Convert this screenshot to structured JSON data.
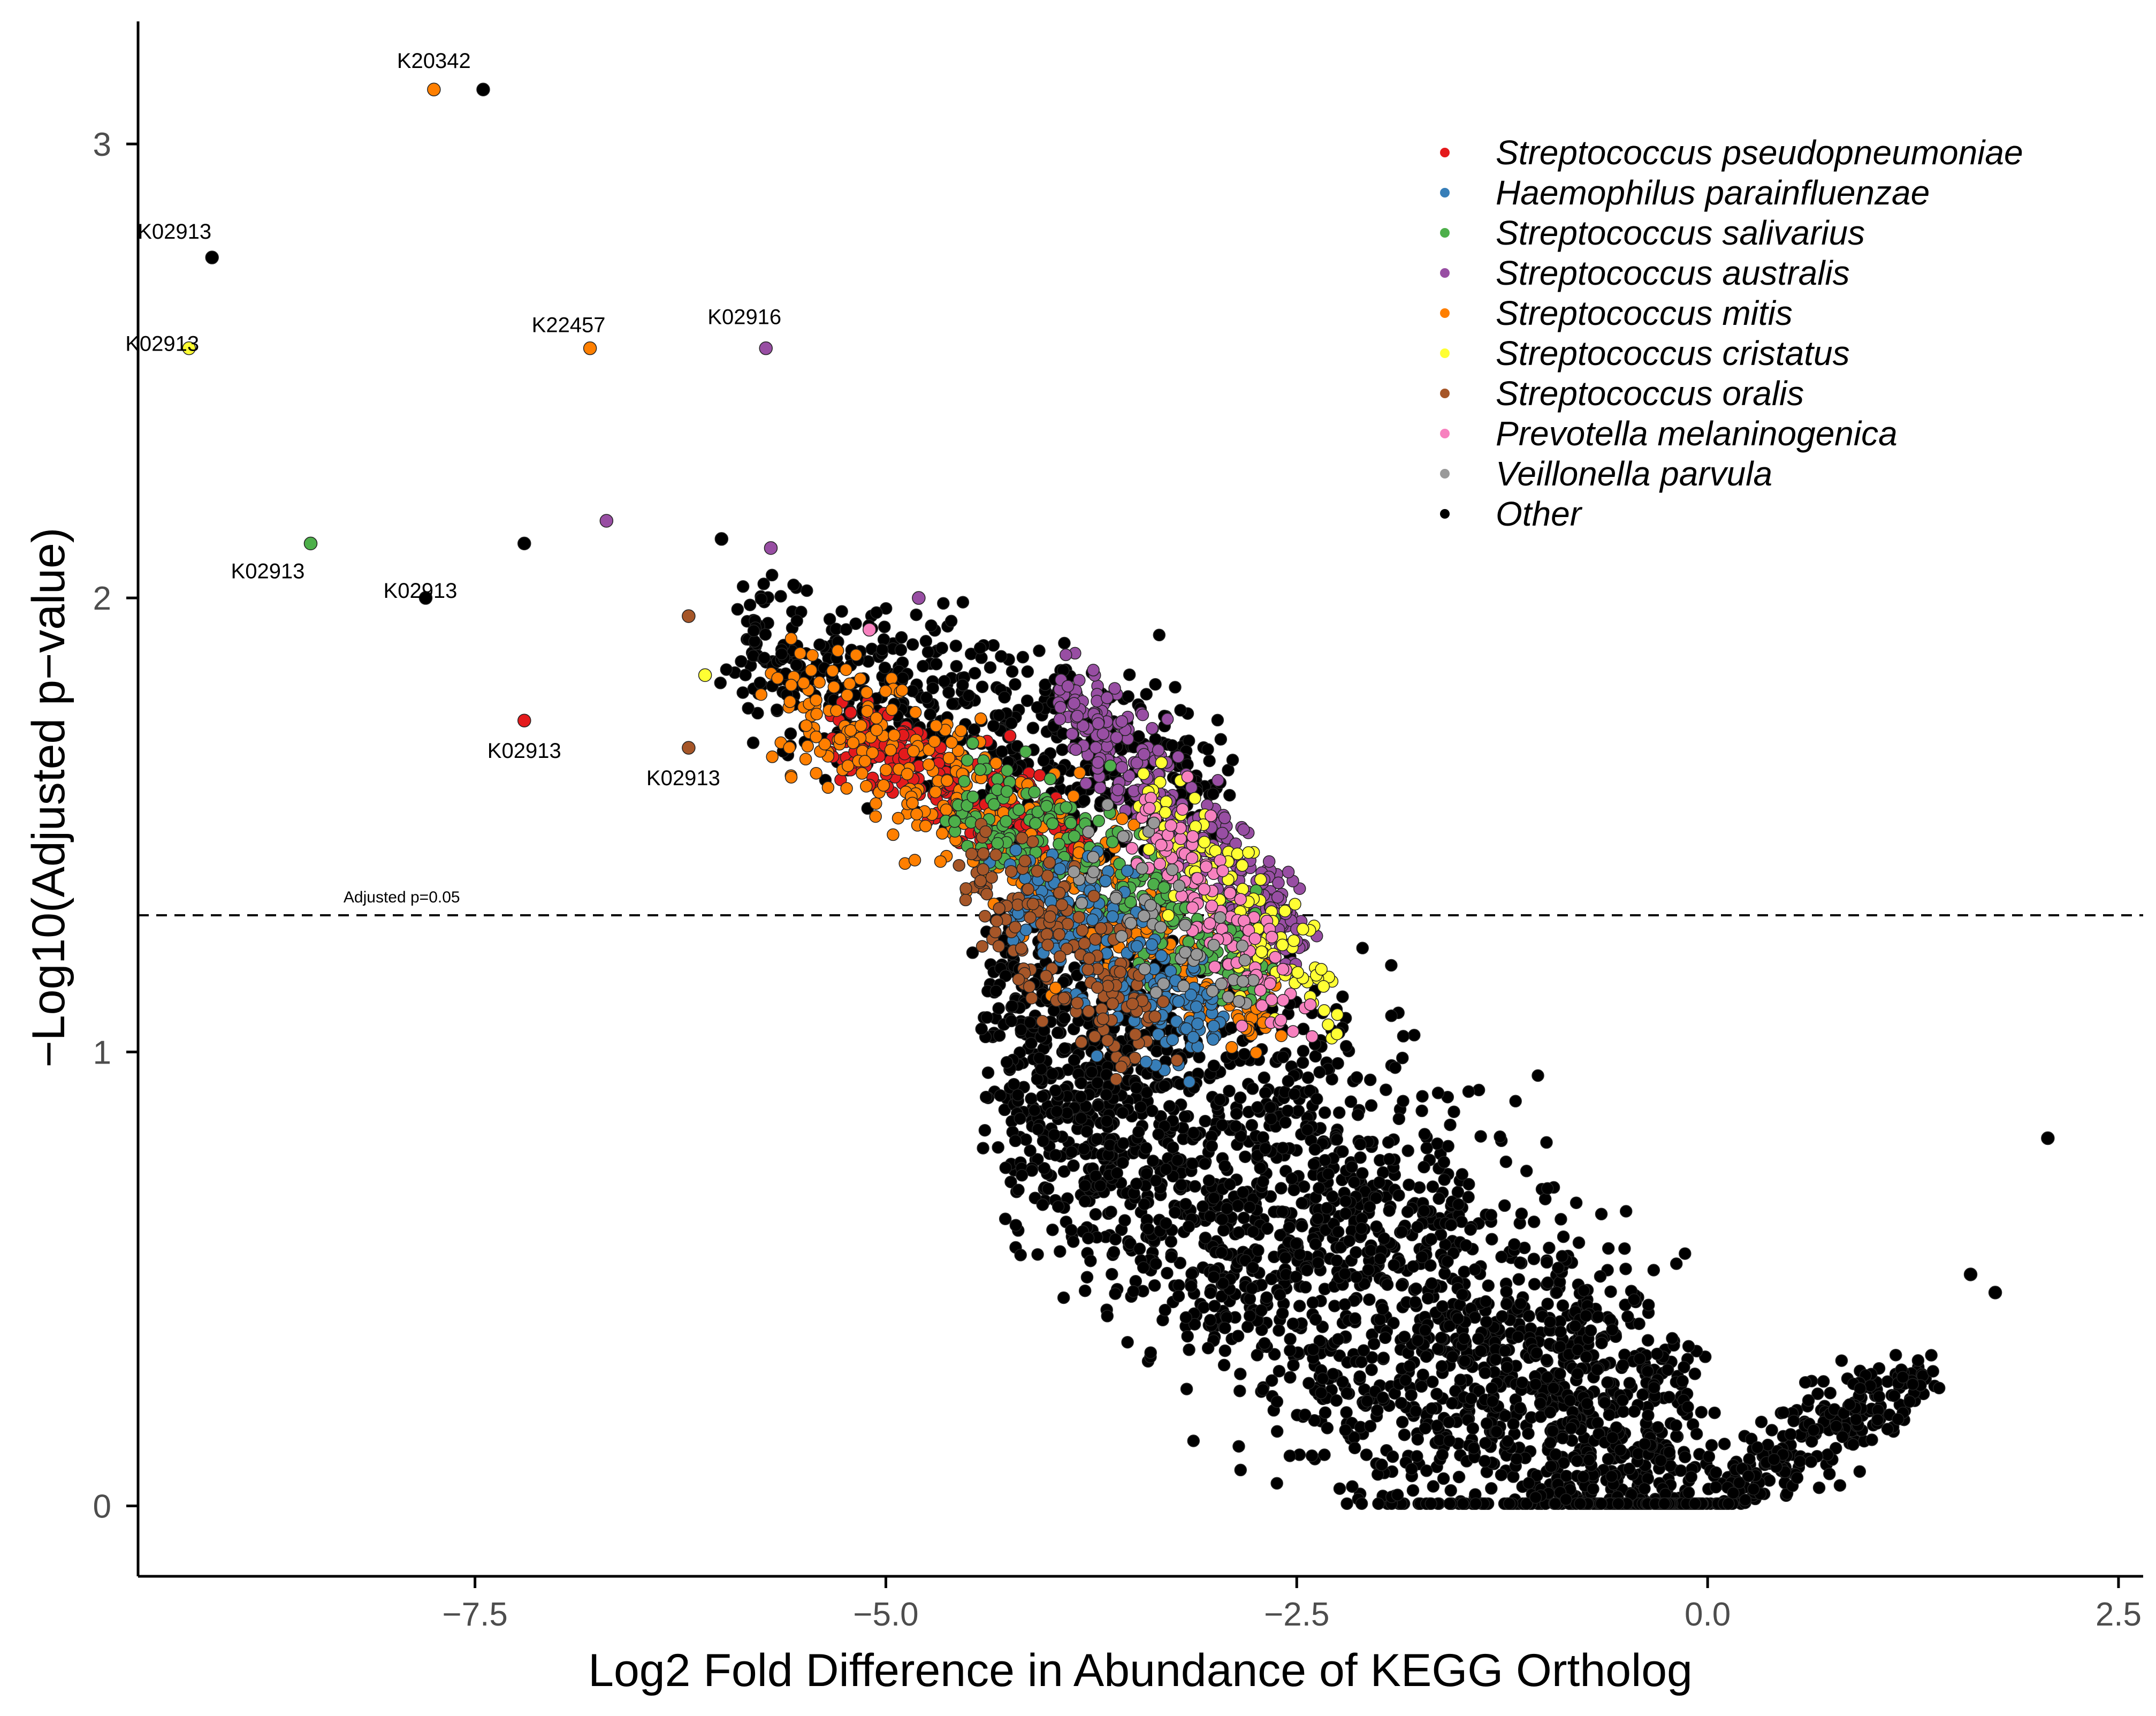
{
  "chart_data": {
    "type": "scatter",
    "title": "",
    "xlabel": "Log2 Fold Difference in Abundance of KEGG Ortholog",
    "ylabel": "−Log10(Adjusted p−value)",
    "xlim": [
      -9.55,
      2.65
    ],
    "ylim": [
      -0.155,
      3.27
    ],
    "x_ticks": [
      -7.5,
      -5.0,
      -2.5,
      0.0,
      2.5
    ],
    "x_tick_labels": [
      "−7.5",
      "−5.0",
      "−2.5",
      "0.0",
      "2.5"
    ],
    "y_ticks": [
      0,
      1,
      2,
      3
    ],
    "y_tick_labels": [
      "0",
      "1",
      "2",
      "3"
    ],
    "threshold": {
      "y": 1.301,
      "label": "Adjusted p=0.05"
    },
    "legend_position": "top-right",
    "legend": [
      {
        "name": "Streptococcus pseudopneumoniae",
        "color": "#e41a1c"
      },
      {
        "name": "Haemophilus parainfluenzae",
        "color": "#377eb8"
      },
      {
        "name": "Streptococcus salivarius",
        "color": "#4daf4a"
      },
      {
        "name": "Streptococcus australis",
        "color": "#984ea3"
      },
      {
        "name": "Streptococcus mitis",
        "color": "#ff7f00"
      },
      {
        "name": "Streptococcus cristatus",
        "color": "#ffff33"
      },
      {
        "name": "Streptococcus oralis",
        "color": "#a65628"
      },
      {
        "name": "Prevotella melaninogenica",
        "color": "#f781bf"
      },
      {
        "name": "Veillonella parvula",
        "color": "#999999"
      },
      {
        "name": "Other",
        "color": "#000000"
      }
    ],
    "labeled_points": [
      {
        "label": "K20342",
        "x": -7.75,
        "y": 3.12,
        "series": "Streptococcus mitis"
      },
      {
        "label": "",
        "x": -7.45,
        "y": 3.12,
        "series": "Other"
      },
      {
        "label": "K02913",
        "x": -9.1,
        "y": 2.75,
        "series": "Other"
      },
      {
        "label": "K02913",
        "x": -9.24,
        "y": 2.55,
        "series": "Streptococcus cristatus"
      },
      {
        "label": "K22457",
        "x": -6.8,
        "y": 2.55,
        "series": "Streptococcus mitis"
      },
      {
        "label": "K02916",
        "x": -5.73,
        "y": 2.55,
        "series": "Streptococcus australis"
      },
      {
        "label": "K02913",
        "x": -8.5,
        "y": 2.12,
        "series": "Streptococcus salivarius"
      },
      {
        "label": "K02913",
        "x": -7.8,
        "y": 2.0,
        "series": "Other"
      },
      {
        "label": "K02913",
        "x": -7.2,
        "y": 1.73,
        "series": "Streptococcus pseudopneumoniae"
      },
      {
        "label": "K02913",
        "x": -6.2,
        "y": 1.67,
        "series": "Streptococcus oralis"
      }
    ],
    "extra_points": [
      {
        "x": 2.07,
        "y": 0.81,
        "series": "Other"
      },
      {
        "x": 1.75,
        "y": 0.47,
        "series": "Other"
      },
      {
        "x": 1.6,
        "y": 0.51,
        "series": "Other"
      },
      {
        "x": -7.2,
        "y": 2.12,
        "series": "Other"
      },
      {
        "x": -6.0,
        "y": 2.13,
        "series": "Other"
      },
      {
        "x": -5.7,
        "y": 2.11,
        "series": "Streptococcus australis"
      },
      {
        "x": -6.7,
        "y": 2.17,
        "series": "Streptococcus australis"
      },
      {
        "x": -4.8,
        "y": 2.0,
        "series": "Streptococcus australis"
      },
      {
        "x": -5.1,
        "y": 1.93,
        "series": "Prevotella melaninogenica"
      },
      {
        "x": -6.1,
        "y": 1.83,
        "series": "Streptococcus cristatus"
      },
      {
        "x": -6.2,
        "y": 1.96,
        "series": "Streptococcus oralis"
      }
    ],
    "clouds": [
      {
        "series": "Other",
        "description": "dense left arm",
        "x_from": -4.3,
        "x_to": -0.05,
        "y_at_from": 1.05,
        "y_at_to": 0.02,
        "spread": 0.28,
        "n": 2600
      },
      {
        "series": "Other",
        "description": "upper wedge",
        "x_from": -5.9,
        "x_to": -3.0,
        "y_at_from": 1.88,
        "y_at_to": 1.6,
        "spread": 0.12,
        "n": 600
      },
      {
        "series": "Other",
        "description": "right arm",
        "x_from": 0.05,
        "x_to": 1.3,
        "y_at_from": 0.02,
        "y_at_to": 0.3,
        "spread": 0.05,
        "n": 260
      },
      {
        "series": "Streptococcus australis",
        "x_from": -3.9,
        "x_to": -2.5,
        "y_at_from": 1.78,
        "y_at_to": 1.25,
        "spread": 0.07,
        "n": 320
      },
      {
        "series": "Streptococcus pseudopneumoniae",
        "x_from": -5.3,
        "x_to": -3.8,
        "y_at_from": 1.72,
        "y_at_to": 1.45,
        "spread": 0.06,
        "n": 260
      },
      {
        "series": "Streptococcus mitis",
        "x_from": -5.6,
        "x_to": -2.7,
        "y_at_from": 1.8,
        "y_at_to": 1.1,
        "spread": 0.1,
        "n": 420
      },
      {
        "series": "Streptococcus salivarius",
        "x_from": -4.5,
        "x_to": -2.7,
        "y_at_from": 1.55,
        "y_at_to": 1.2,
        "spread": 0.09,
        "n": 260
      },
      {
        "series": "Haemophilus parainfluenzae",
        "x_from": -4.2,
        "x_to": -3.0,
        "y_at_from": 1.35,
        "y_at_to": 1.05,
        "spread": 0.09,
        "n": 230
      },
      {
        "series": "Streptococcus oralis",
        "x_from": -4.5,
        "x_to": -3.4,
        "y_at_from": 1.4,
        "y_at_to": 1.08,
        "spread": 0.09,
        "n": 160
      },
      {
        "series": "Streptococcus cristatus",
        "x_from": -3.4,
        "x_to": -2.3,
        "y_at_from": 1.55,
        "y_at_to": 1.1,
        "spread": 0.08,
        "n": 130
      },
      {
        "series": "Prevotella melaninogenica",
        "x_from": -3.4,
        "x_to": -2.5,
        "y_at_from": 1.5,
        "y_at_to": 1.1,
        "spread": 0.08,
        "n": 110
      },
      {
        "series": "Veillonella parvula",
        "x_from": -3.8,
        "x_to": -2.8,
        "y_at_from": 1.45,
        "y_at_to": 1.15,
        "spread": 0.08,
        "n": 50
      }
    ]
  }
}
